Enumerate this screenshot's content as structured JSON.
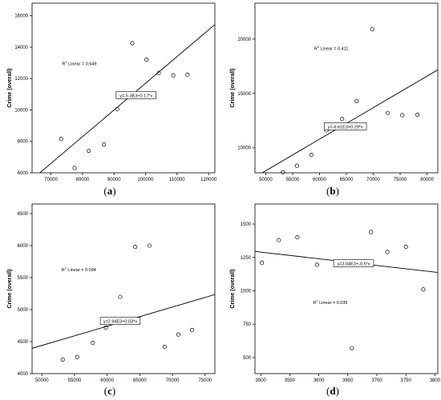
{
  "chart_data": [
    {
      "type": "scatter",
      "panel_label": "(a)",
      "bold_letter": "a",
      "ylabel": "Crime (overall)",
      "xlabel": "",
      "xlim": [
        64000,
        122000
      ],
      "ylim": [
        6000,
        16800
      ],
      "xticks": [
        70000,
        80000,
        90000,
        100000,
        110000,
        120000
      ],
      "yticks": [
        6000,
        8000,
        10000,
        12000,
        14000,
        16000
      ],
      "points": [
        {
          "x": 73200,
          "y": 8150
        },
        {
          "x": 77500,
          "y": 6300
        },
        {
          "x": 82000,
          "y": 7400
        },
        {
          "x": 86800,
          "y": 7800
        },
        {
          "x": 91000,
          "y": 10050
        },
        {
          "x": 95800,
          "y": 14250
        },
        {
          "x": 100300,
          "y": 13200
        },
        {
          "x": 104200,
          "y": 12350
        },
        {
          "x": 108800,
          "y": 12200
        },
        {
          "x": 113300,
          "y": 12250
        }
      ],
      "fit": {
        "slope": 0.17,
        "intercept": -5300
      },
      "equation_label": "y=-5.3E3+0.17*x",
      "equation_pos": {
        "x": 97000,
        "y": 10900
      },
      "r2_label": "R",
      "r2_sup": "2",
      "r2_text": " Linear = 0.649",
      "r2_pos": {
        "x": 73500,
        "y": 12850
      }
    },
    {
      "type": "scatter",
      "panel_label": "(b)",
      "bold_letter": "b",
      "ylabel": "Crime (overall)",
      "xlabel": "",
      "xlim": [
        48000,
        82000
      ],
      "ylim": [
        7700,
        23300
      ],
      "xticks": [
        50000,
        55000,
        60000,
        65000,
        70000,
        75000,
        80000
      ],
      "yticks": [
        10000,
        15000,
        20000
      ],
      "points": [
        {
          "x": 53200,
          "y": 7750
        },
        {
          "x": 55800,
          "y": 8350
        },
        {
          "x": 58500,
          "y": 9350
        },
        {
          "x": 61300,
          "y": 11600
        },
        {
          "x": 64200,
          "y": 12650
        },
        {
          "x": 66900,
          "y": 14300
        },
        {
          "x": 69800,
          "y": 20900
        },
        {
          "x": 72700,
          "y": 13200
        },
        {
          "x": 75400,
          "y": 13000
        },
        {
          "x": 78200,
          "y": 13050
        }
      ],
      "fit": {
        "slope": 0.29,
        "intercept": -6610
      },
      "equation_label": "y=-6.61E3+0.29*x",
      "equation_pos": {
        "x": 64800,
        "y": 11900
      },
      "r2_label": "R",
      "r2_sup": "2",
      "r2_text": " Linear = 0.411",
      "r2_pos": {
        "x": 59000,
        "y": 19000
      }
    },
    {
      "type": "scatter",
      "panel_label": "(c)",
      "bold_letter": "c",
      "ylabel": "Crime (overall)",
      "xlabel": "",
      "xlim": [
        48500,
        76500
      ],
      "ylim": [
        4000,
        6650
      ],
      "xticks": [
        50000,
        55000,
        60000,
        65000,
        70000,
        75000
      ],
      "yticks": [
        4000,
        4500,
        5000,
        5500,
        6000,
        6500
      ],
      "points": [
        {
          "x": 53200,
          "y": 4220
        },
        {
          "x": 55400,
          "y": 4260
        },
        {
          "x": 57800,
          "y": 4480
        },
        {
          "x": 59800,
          "y": 4720
        },
        {
          "x": 62000,
          "y": 5200
        },
        {
          "x": 64300,
          "y": 5980
        },
        {
          "x": 66500,
          "y": 6000
        },
        {
          "x": 68800,
          "y": 4420
        },
        {
          "x": 70900,
          "y": 4610
        },
        {
          "x": 73000,
          "y": 4680
        }
      ],
      "fit": {
        "slope": 0.03,
        "intercept": 2940
      },
      "equation_label": "y=2.94E3+0.03*x",
      "equation_pos": {
        "x": 62000,
        "y": 4810
      },
      "r2_label": "R",
      "r2_sup": "2",
      "r2_text": " Linear = 0.094",
      "r2_pos": {
        "x": 53000,
        "y": 5600
      }
    },
    {
      "type": "scatter",
      "panel_label": "(d)",
      "bold_letter": "d",
      "ylabel": "Crime (overall)",
      "xlabel": "",
      "xlim": [
        3490,
        3805
      ],
      "ylim": [
        380,
        1650
      ],
      "xticks": [
        3500,
        3550,
        3600,
        3650,
        3700,
        3750,
        3800
      ],
      "yticks": [
        500,
        750,
        1000,
        1250,
        1500
      ],
      "points": [
        {
          "x": 3502,
          "y": 1210
        },
        {
          "x": 3531,
          "y": 1380
        },
        {
          "x": 3563,
          "y": 1400
        },
        {
          "x": 3597,
          "y": 1195
        },
        {
          "x": 3657,
          "y": 570
        },
        {
          "x": 3690,
          "y": 1440
        },
        {
          "x": 3718,
          "y": 1290
        },
        {
          "x": 3750,
          "y": 1330
        },
        {
          "x": 3780,
          "y": 1010
        }
      ],
      "fit": {
        "slope": -0.5,
        "intercept": 3040
      },
      "equation_label": "y=3.04E3+-0.5*x",
      "equation_pos": {
        "x": 3660,
        "y": 1200
      },
      "r2_label": "R",
      "r2_sup": "2",
      "r2_text": " Linear = 0.035",
      "r2_pos": {
        "x": 3590,
        "y": 900
      }
    }
  ]
}
